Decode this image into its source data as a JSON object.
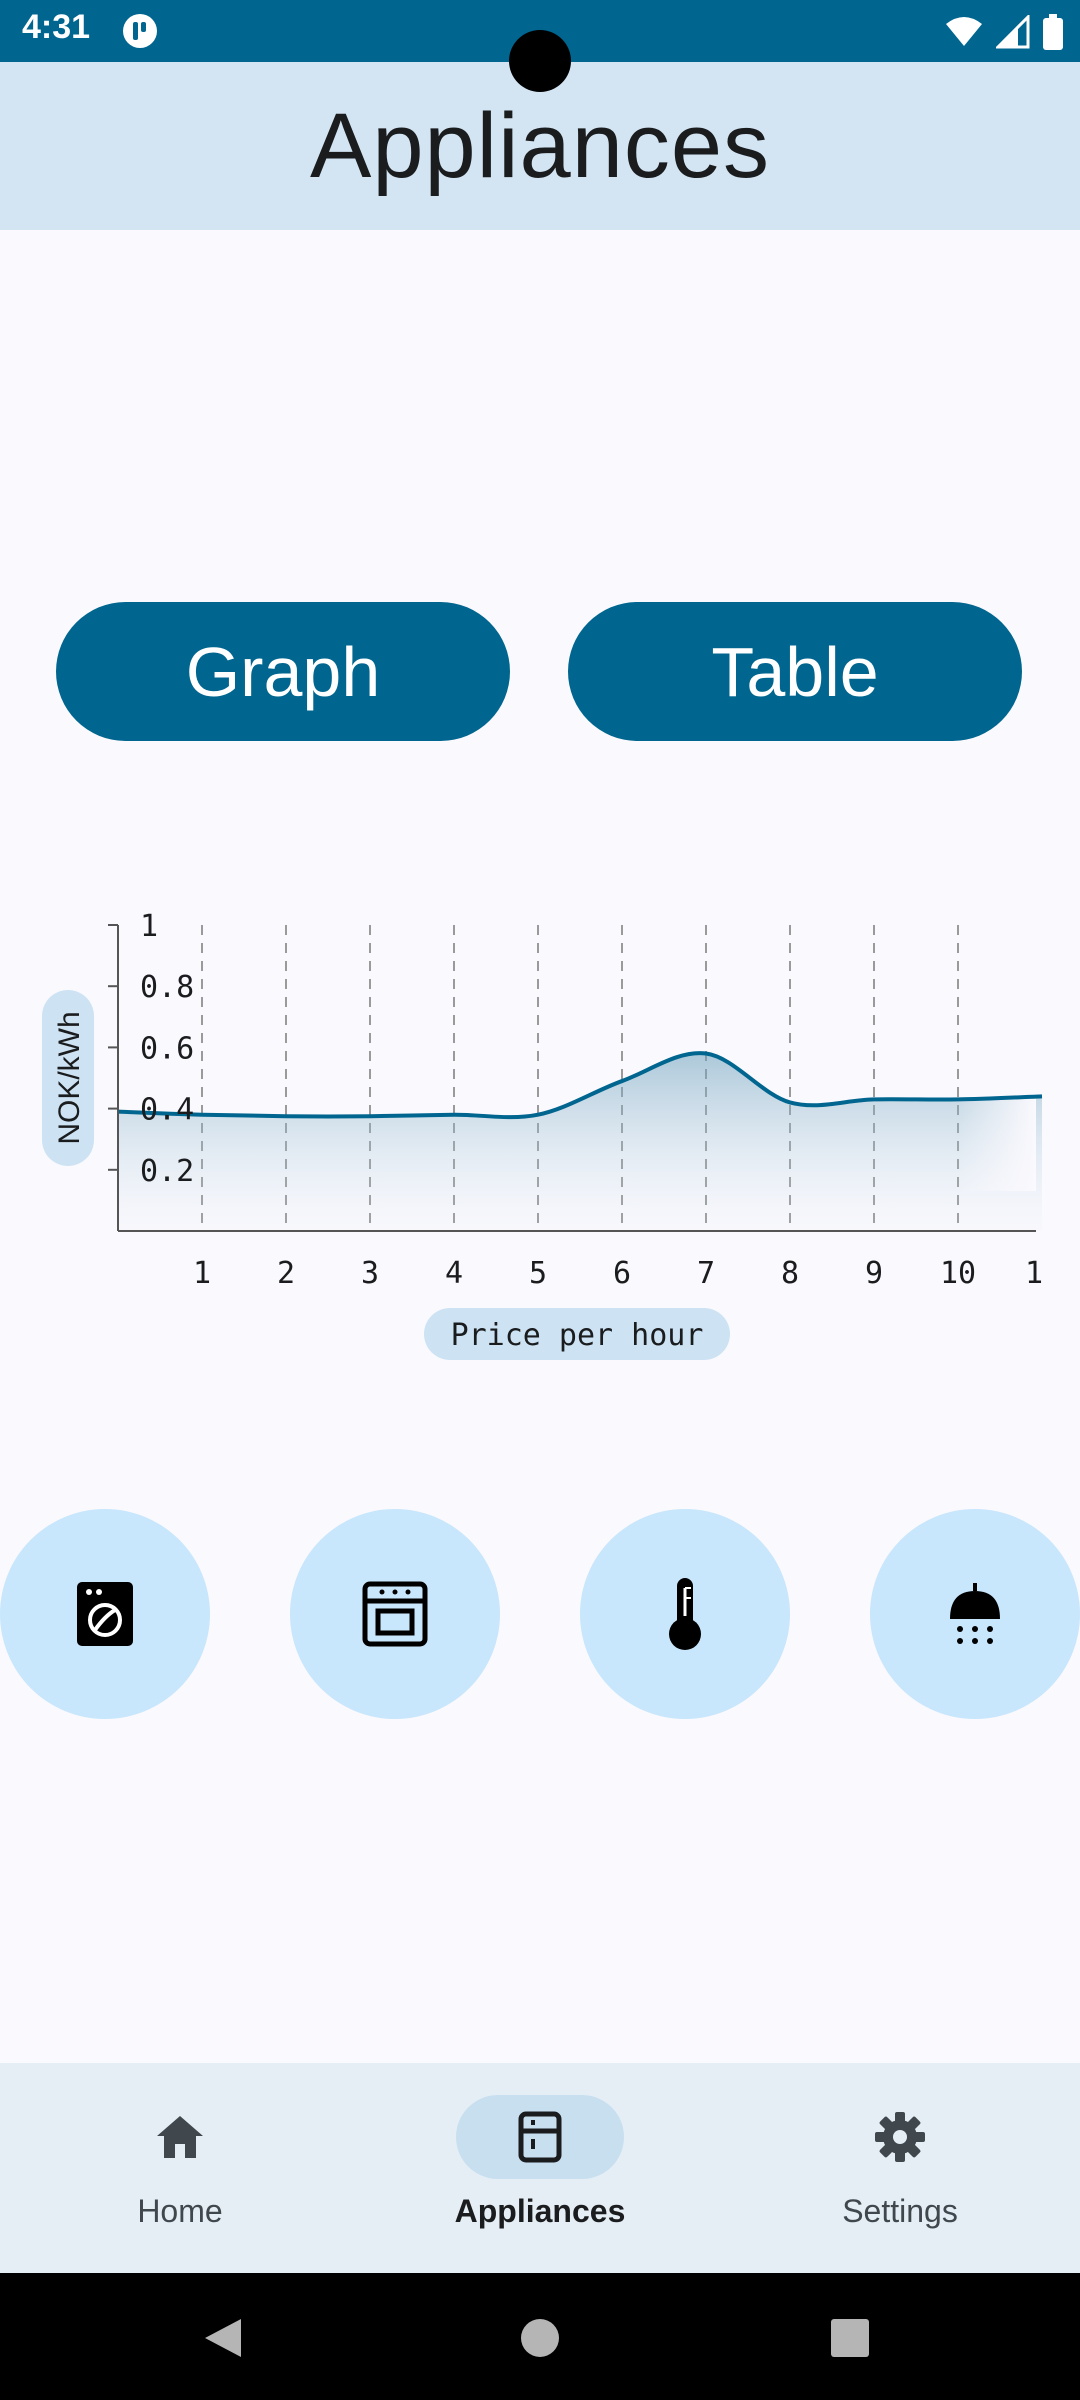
{
  "status_bar": {
    "time": "4:31",
    "icons": [
      "app-notification-icon",
      "wifi-icon",
      "signal-icon",
      "battery-icon"
    ]
  },
  "app_bar": {
    "title": "Appliances"
  },
  "toggle": {
    "graph_label": "Graph",
    "table_label": "Table"
  },
  "chart_data": {
    "type": "area",
    "xlabel": "Price per hour",
    "ylabel": "NOK/kWh",
    "x_ticks": [
      "1",
      "2",
      "3",
      "4",
      "5",
      "6",
      "7",
      "8",
      "9",
      "10",
      "1"
    ],
    "y_ticks": [
      "0.2",
      "0.4",
      "0.6",
      "0.8",
      "1"
    ],
    "ylim": [
      0,
      1
    ],
    "x": [
      0,
      1,
      2,
      3,
      4,
      5,
      6,
      7,
      8,
      9,
      10,
      11
    ],
    "values": [
      0.39,
      0.38,
      0.375,
      0.375,
      0.38,
      0.38,
      0.49,
      0.58,
      0.42,
      0.43,
      0.43,
      0.44
    ],
    "grid": "vertical dashed",
    "line_color": "#00658f"
  },
  "appliances": [
    {
      "name": "washing-machine-icon"
    },
    {
      "name": "oven-icon"
    },
    {
      "name": "thermometer-icon"
    },
    {
      "name": "shower-icon"
    }
  ],
  "bottom_nav": {
    "items": [
      {
        "label": "Home",
        "icon": "home-icon",
        "active": false
      },
      {
        "label": "Appliances",
        "icon": "appliances-icon",
        "active": true
      },
      {
        "label": "Settings",
        "icon": "gear-icon",
        "active": false
      }
    ]
  },
  "system_nav": {
    "icons": [
      "back-icon",
      "home-circle-icon",
      "recents-icon"
    ]
  }
}
